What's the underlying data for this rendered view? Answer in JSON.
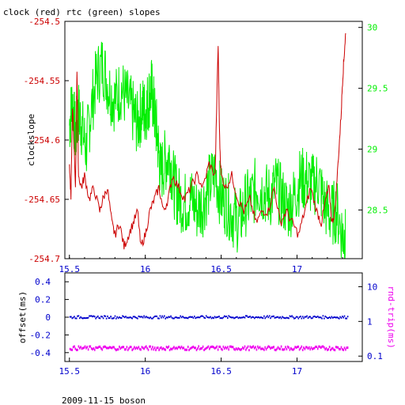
{
  "page": {
    "title": "clock (red) rtc (green) slopes",
    "footer": "2009-11-15 boson"
  },
  "colors": {
    "clock": "#cc0000",
    "rtc": "#00ee00",
    "offset": "#0000cc",
    "rndtrip": "#ee00ee",
    "axis": "#000000"
  },
  "chart_data": [
    {
      "type": "line",
      "title": "clock (red) rtc (green) slopes",
      "ylabel": "clockslope",
      "xlim": [
        15.47,
        17.43
      ],
      "ylim": [
        -254.7,
        -254.5
      ],
      "y2lim": [
        28.1,
        30.05
      ],
      "x_ticks": [
        "15.5",
        "16",
        "16.5",
        "17"
      ],
      "x_tick_values": [
        15.5,
        16.0,
        16.5,
        17.0
      ],
      "y_ticks": [
        "-254.5",
        "-254.55",
        "-254.6",
        "-254.65",
        "-254.7"
      ],
      "y_tick_values": [
        -254.5,
        -254.55,
        -254.6,
        -254.65,
        -254.7
      ],
      "y2_ticks": [
        "30",
        "29.5",
        "29",
        "28.5"
      ],
      "y2_tick_values": [
        30.0,
        29.5,
        29.0,
        28.5
      ],
      "grid": false,
      "series": [
        {
          "name": "clock",
          "axis": "left",
          "x": [
            15.5,
            15.51,
            15.52,
            15.54,
            15.55,
            15.56,
            15.58,
            15.6,
            15.63,
            15.66,
            15.7,
            15.72,
            15.75,
            15.78,
            15.8,
            15.83,
            15.86,
            15.89,
            15.92,
            15.95,
            15.97,
            16.0,
            16.03,
            16.06,
            16.09,
            16.12,
            16.15,
            16.18,
            16.22,
            16.26,
            16.3,
            16.34,
            16.38,
            16.42,
            16.46,
            16.48,
            16.49,
            16.5,
            16.53,
            16.57,
            16.61,
            16.65,
            16.69,
            16.73,
            16.77,
            16.81,
            16.85,
            16.89,
            16.93,
            16.97,
            17.01,
            17.05,
            17.09,
            17.13,
            17.16,
            17.19,
            17.21,
            17.23,
            17.25,
            17.27,
            17.29,
            17.3,
            17.31,
            17.32
          ],
          "y": [
            -254.62,
            -254.65,
            -254.57,
            -254.64,
            -254.54,
            -254.63,
            -254.64,
            -254.63,
            -254.65,
            -254.64,
            -254.66,
            -254.65,
            -254.64,
            -254.67,
            -254.68,
            -254.67,
            -254.69,
            -254.68,
            -254.67,
            -254.66,
            -254.69,
            -254.68,
            -254.66,
            -254.65,
            -254.64,
            -254.66,
            -254.65,
            -254.63,
            -254.64,
            -254.65,
            -254.64,
            -254.63,
            -254.64,
            -254.62,
            -254.63,
            -254.52,
            -254.6,
            -254.63,
            -254.64,
            -254.63,
            -254.65,
            -254.66,
            -254.65,
            -254.67,
            -254.66,
            -254.66,
            -254.64,
            -254.67,
            -254.66,
            -254.67,
            -254.68,
            -254.66,
            -254.64,
            -254.66,
            -254.67,
            -254.65,
            -254.64,
            -254.67,
            -254.66,
            -254.62,
            -254.58,
            -254.55,
            -254.53,
            -254.51
          ]
        },
        {
          "name": "rtc",
          "axis": "right",
          "x": [
            15.5,
            15.52,
            15.54,
            15.56,
            15.58,
            15.61,
            15.64,
            15.68,
            15.72,
            15.76,
            15.8,
            15.84,
            15.88,
            15.92,
            15.95,
            15.98,
            16.0,
            16.02,
            16.04,
            16.06,
            16.08,
            16.1,
            16.13,
            16.16,
            16.19,
            16.22,
            16.26,
            16.3,
            16.34,
            16.38,
            16.42,
            16.46,
            16.5,
            16.54,
            16.58,
            16.62,
            16.66,
            16.7,
            16.74,
            16.78,
            16.82,
            16.86,
            16.9,
            16.94,
            16.98,
            17.02,
            17.06,
            17.1,
            17.14,
            17.18,
            17.22,
            17.26,
            17.3,
            17.32
          ],
          "y": [
            29.2,
            29.4,
            29.1,
            29.3,
            29.2,
            29.0,
            29.3,
            29.6,
            29.7,
            29.5,
            29.4,
            29.5,
            29.4,
            29.3,
            29.2,
            29.35,
            29.3,
            29.4,
            29.5,
            29.3,
            29.1,
            28.8,
            28.9,
            28.95,
            28.7,
            28.6,
            28.55,
            28.6,
            28.5,
            28.55,
            28.7,
            28.8,
            28.6,
            28.55,
            28.45,
            28.4,
            28.55,
            28.6,
            28.7,
            28.65,
            28.6,
            28.7,
            28.6,
            28.5,
            28.6,
            28.75,
            28.75,
            28.7,
            28.75,
            28.55,
            28.45,
            28.5,
            28.3,
            28.25
          ]
        }
      ]
    },
    {
      "type": "scatter",
      "ylabel": "offset(ms)",
      "y2label": "rnd-trip(ms)",
      "xlim": [
        15.47,
        17.43
      ],
      "ylim": [
        -0.5,
        0.5
      ],
      "x_ticks": [
        "15.5",
        "16",
        "16.5",
        "17"
      ],
      "x_tick_values": [
        15.5,
        16.0,
        16.5,
        17.0
      ],
      "y_ticks": [
        "0.4",
        "0.2",
        "0",
        "-0.2",
        "-0.4"
      ],
      "y_tick_values": [
        0.4,
        0.2,
        0.0,
        -0.2,
        -0.4
      ],
      "y2_scale": "log",
      "y2lim": [
        0.07,
        25
      ],
      "y2_ticks": [
        "10",
        "1",
        "0.1"
      ],
      "y2_tick_values": [
        10,
        1,
        0.1
      ],
      "grid": false,
      "series": [
        {
          "name": "offset",
          "axis": "left",
          "x": [
            15.5,
            15.6,
            15.7,
            15.8,
            15.9,
            16.0,
            16.1,
            16.2,
            16.3,
            16.4,
            16.5,
            16.6,
            16.7,
            16.8,
            16.9,
            17.0,
            17.1,
            17.2,
            17.3,
            17.33
          ],
          "y": [
            0.0,
            0.0,
            0.0,
            0.0,
            0.0,
            0.0,
            0.0,
            0.0,
            0.0,
            0.0,
            0.0,
            0.0,
            0.0,
            0.0,
            0.0,
            0.0,
            0.0,
            0.0,
            0.0,
            0.0
          ]
        },
        {
          "name": "rnd-trip",
          "axis": "right",
          "x": [
            15.5,
            15.6,
            15.7,
            15.8,
            15.9,
            16.0,
            16.1,
            16.2,
            16.3,
            16.4,
            16.5,
            16.6,
            16.7,
            16.8,
            16.9,
            17.0,
            17.1,
            17.2,
            17.3,
            17.33
          ],
          "y": [
            0.17,
            0.17,
            0.17,
            0.17,
            0.17,
            0.17,
            0.17,
            0.17,
            0.17,
            0.17,
            0.17,
            0.17,
            0.17,
            0.17,
            0.17,
            0.17,
            0.17,
            0.17,
            0.17,
            0.17
          ]
        }
      ]
    }
  ]
}
